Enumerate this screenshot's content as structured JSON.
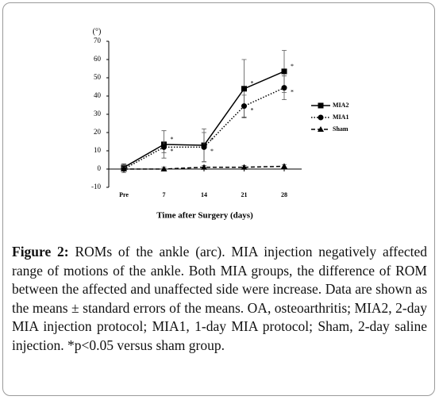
{
  "chart_data": {
    "type": "line",
    "y_label": "(°)",
    "x_label": "Time after Surgery (days)",
    "categories": [
      "Pre",
      "7",
      "14",
      "21",
      "28"
    ],
    "ylim": [
      -10,
      70
    ],
    "yticks": [
      -10,
      0,
      10,
      20,
      30,
      40,
      50,
      60,
      70
    ],
    "legend": "right",
    "series": [
      {
        "name": "MIA2",
        "color": "#000000",
        "line_style": "solid",
        "marker": "square",
        "values": [
          0.9,
          13.5,
          13,
          44,
          53.5
        ],
        "errors": [
          2,
          7.5,
          9,
          16,
          11.5
        ],
        "annotations": [
          null,
          "*",
          "*",
          "*",
          "*"
        ]
      },
      {
        "name": "MIA1",
        "color": "#000000",
        "line_style": "dotted",
        "marker": "circle",
        "values": [
          0,
          12,
          12,
          34.5,
          44.5
        ],
        "errors": [
          2,
          3,
          8,
          6,
          6.5
        ],
        "annotations": [
          null,
          "*",
          "*",
          "*",
          "*"
        ]
      },
      {
        "name": "Sham",
        "color": "#000000",
        "line_style": "dashed",
        "marker": "triangle",
        "values": [
          0,
          0,
          1,
          1,
          1.5
        ],
        "errors": [
          1,
          1,
          1,
          1,
          1
        ],
        "annotations": [
          null,
          null,
          null,
          null,
          null
        ]
      }
    ]
  },
  "caption": {
    "label": "Figure 2:",
    "text": "ROMs of the ankle (arc). MIA injection negatively affected range of motions of the ankle. Both MIA groups, the difference of ROM between the affected and unaffected side were increase. Data are shown as the means ± standard errors of the means. OA, osteoarthritis; MIA2, 2-day MIA injection protocol; MIA1, 1-day MIA protocol; Sham, 2-day saline injection. *p<0.05 versus sham group."
  }
}
